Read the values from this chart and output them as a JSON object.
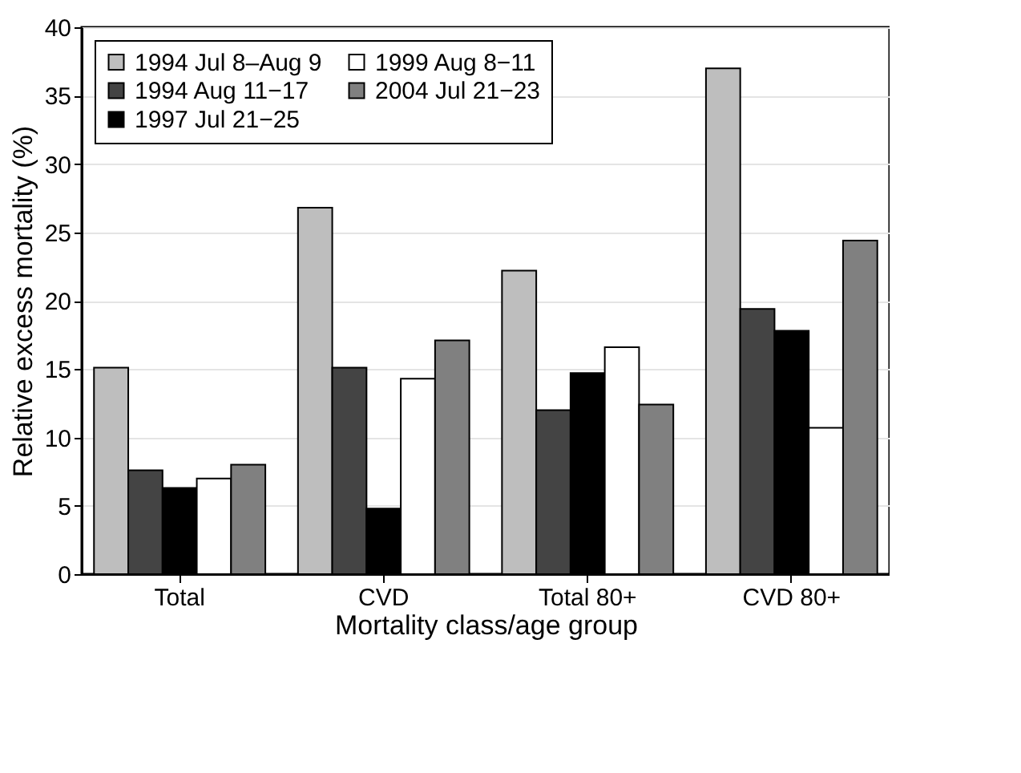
{
  "chart_data": {
    "type": "bar",
    "xlabel": "Mortality class/age group",
    "ylabel": "Relative excess mortality (%)",
    "categories": [
      "Total",
      "CVD",
      "Total 80+",
      "CVD 80+"
    ],
    "series": [
      {
        "name": "1994 Jul 8–Aug 9",
        "color": "#bebebe",
        "values": [
          15.1,
          26.8,
          22.2,
          37.0
        ]
      },
      {
        "name": "1994 Aug 11−17",
        "color": "#444444",
        "values": [
          7.6,
          15.1,
          12.0,
          19.4
        ]
      },
      {
        "name": "1997 Jul 21−25",
        "color": "#000000",
        "values": [
          6.3,
          4.8,
          14.7,
          17.8
        ]
      },
      {
        "name": "1999 Aug 8−11",
        "color": "#ffffff",
        "values": [
          7.0,
          14.3,
          16.6,
          10.7
        ]
      },
      {
        "name": "2004 Jul 21−23",
        "color": "#808080",
        "values": [
          8.0,
          17.1,
          12.4,
          24.4
        ]
      }
    ],
    "ylim": [
      0,
      40
    ],
    "yticks": [
      0,
      5,
      10,
      15,
      20,
      25,
      30,
      35,
      40
    ],
    "grid": "y",
    "legend": "top left"
  }
}
